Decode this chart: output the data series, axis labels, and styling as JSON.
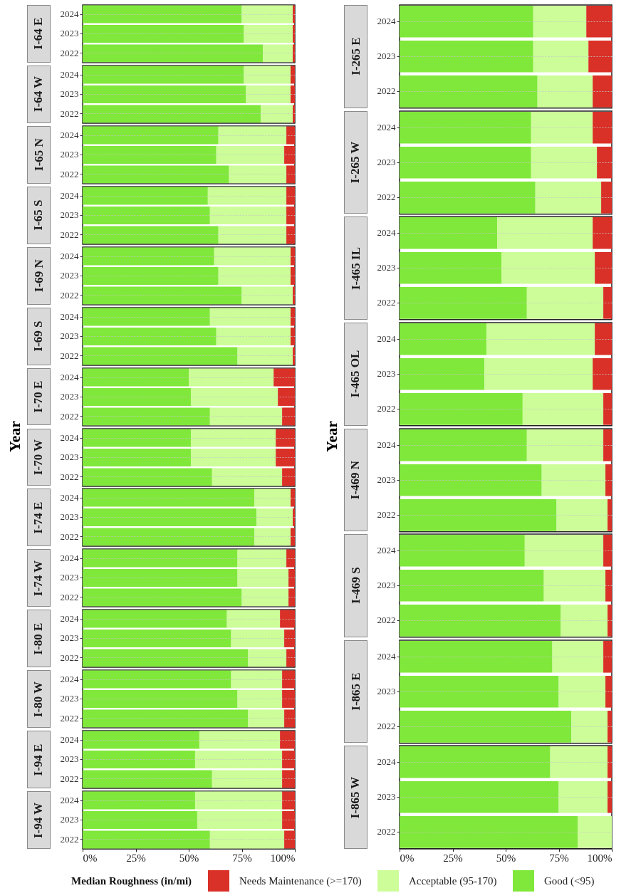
{
  "chart_data": [
    {
      "type": "bar",
      "title": "I-64 E",
      "categories": [
        "2024",
        "2023",
        "2022"
      ],
      "stacked": true,
      "orientation": "horizontal",
      "grid": "y",
      "tick_labels": "y",
      "xlim": [
        0,
        100
      ],
      "series": [
        {
          "color": "#80e83a",
          "values": [
            75,
            76,
            85
          ]
        },
        {
          "color": "#ccfd98",
          "values": [
            24,
            23,
            14
          ]
        },
        {
          "color": "#d93027",
          "values": [
            1,
            1,
            1
          ]
        }
      ]
    },
    {
      "type": "bar",
      "title": "I-64 W",
      "categories": [
        "2024",
        "2023",
        "2022"
      ],
      "stacked": true,
      "orientation": "horizontal",
      "grid": "y",
      "tick_labels": "y",
      "xlim": [
        0,
        100
      ],
      "series": [
        {
          "color": "#80e83a",
          "values": [
            76,
            77,
            84
          ]
        },
        {
          "color": "#ccfd98",
          "values": [
            22,
            21,
            15
          ]
        },
        {
          "color": "#d93027",
          "values": [
            2,
            2,
            1
          ]
        }
      ]
    },
    {
      "type": "bar",
      "title": "I-65 N",
      "categories": [
        "2024",
        "2023",
        "2022"
      ],
      "stacked": true,
      "orientation": "horizontal",
      "grid": "y",
      "tick_labels": "y",
      "xlim": [
        0,
        100
      ],
      "series": [
        {
          "color": "#80e83a",
          "values": [
            64,
            63,
            69
          ]
        },
        {
          "color": "#ccfd98",
          "values": [
            32,
            32,
            27
          ]
        },
        {
          "color": "#d93027",
          "values": [
            4,
            5,
            4
          ]
        }
      ]
    },
    {
      "type": "bar",
      "title": "I-65 S",
      "categories": [
        "2024",
        "2023",
        "2022"
      ],
      "stacked": true,
      "orientation": "horizontal",
      "grid": "y",
      "tick_labels": "y",
      "xlim": [
        0,
        100
      ],
      "series": [
        {
          "color": "#80e83a",
          "values": [
            59,
            60,
            64
          ]
        },
        {
          "color": "#ccfd98",
          "values": [
            37,
            36,
            32
          ]
        },
        {
          "color": "#d93027",
          "values": [
            4,
            4,
            4
          ]
        }
      ]
    },
    {
      "type": "bar",
      "title": "I-69 N",
      "categories": [
        "2024",
        "2023",
        "2022"
      ],
      "stacked": true,
      "orientation": "horizontal",
      "grid": "y",
      "tick_labels": "y",
      "xlim": [
        0,
        100
      ],
      "series": [
        {
          "color": "#80e83a",
          "values": [
            62,
            64,
            75
          ]
        },
        {
          "color": "#ccfd98",
          "values": [
            36,
            34,
            24
          ]
        },
        {
          "color": "#d93027",
          "values": [
            2,
            2,
            1
          ]
        }
      ]
    },
    {
      "type": "bar",
      "title": "I-69 S",
      "categories": [
        "2024",
        "2023",
        "2022"
      ],
      "stacked": true,
      "orientation": "horizontal",
      "grid": "y",
      "tick_labels": "y",
      "xlim": [
        0,
        100
      ],
      "series": [
        {
          "color": "#80e83a",
          "values": [
            60,
            63,
            73
          ]
        },
        {
          "color": "#ccfd98",
          "values": [
            38,
            35,
            26
          ]
        },
        {
          "color": "#d93027",
          "values": [
            2,
            2,
            1
          ]
        }
      ]
    },
    {
      "type": "bar",
      "title": "I-70 E",
      "categories": [
        "2024",
        "2023",
        "2022"
      ],
      "stacked": true,
      "orientation": "horizontal",
      "grid": "y",
      "tick_labels": "y",
      "xlim": [
        0,
        100
      ],
      "series": [
        {
          "color": "#80e83a",
          "values": [
            50,
            51,
            60
          ]
        },
        {
          "color": "#ccfd98",
          "values": [
            40,
            41,
            34
          ]
        },
        {
          "color": "#d93027",
          "values": [
            10,
            8,
            6
          ]
        }
      ]
    },
    {
      "type": "bar",
      "title": "I-70 W",
      "ylabel": "Year",
      "categories": [
        "2024",
        "2023",
        "2022"
      ],
      "stacked": true,
      "orientation": "horizontal",
      "grid": "y",
      "tick_labels": "y",
      "xlim": [
        0,
        100
      ],
      "series": [
        {
          "color": "#80e83a",
          "values": [
            51,
            51,
            61
          ]
        },
        {
          "color": "#ccfd98",
          "values": [
            40,
            40,
            33
          ]
        },
        {
          "color": "#d93027",
          "values": [
            9,
            9,
            6
          ]
        }
      ]
    },
    {
      "type": "bar",
      "title": "I-74 E",
      "categories": [
        "2024",
        "2023",
        "2022"
      ],
      "stacked": true,
      "orientation": "horizontal",
      "grid": "y",
      "tick_labels": "y",
      "xlim": [
        0,
        100
      ],
      "series": [
        {
          "color": "#80e83a",
          "values": [
            81,
            82,
            81
          ]
        },
        {
          "color": "#ccfd98",
          "values": [
            17,
            17,
            17
          ]
        },
        {
          "color": "#d93027",
          "values": [
            2,
            1,
            2
          ]
        }
      ]
    },
    {
      "type": "bar",
      "title": "I-74 W",
      "categories": [
        "2024",
        "2023",
        "2022"
      ],
      "stacked": true,
      "orientation": "horizontal",
      "grid": "y",
      "tick_labels": "y",
      "xlim": [
        0,
        100
      ],
      "series": [
        {
          "color": "#80e83a",
          "values": [
            73,
            73,
            75
          ]
        },
        {
          "color": "#ccfd98",
          "values": [
            23,
            24,
            22
          ]
        },
        {
          "color": "#d93027",
          "values": [
            4,
            3,
            3
          ]
        }
      ]
    },
    {
      "type": "bar",
      "title": "I-80 E",
      "categories": [
        "2024",
        "2023",
        "2022"
      ],
      "stacked": true,
      "orientation": "horizontal",
      "grid": "y",
      "tick_labels": "y",
      "xlim": [
        0,
        100
      ],
      "series": [
        {
          "color": "#80e83a",
          "values": [
            68,
            70,
            78
          ]
        },
        {
          "color": "#ccfd98",
          "values": [
            25,
            25,
            18
          ]
        },
        {
          "color": "#d93027",
          "values": [
            7,
            5,
            4
          ]
        }
      ]
    },
    {
      "type": "bar",
      "title": "I-80 W",
      "categories": [
        "2024",
        "2023",
        "2022"
      ],
      "stacked": true,
      "orientation": "horizontal",
      "grid": "y",
      "tick_labels": "y",
      "xlim": [
        0,
        100
      ],
      "series": [
        {
          "color": "#80e83a",
          "values": [
            70,
            73,
            78
          ]
        },
        {
          "color": "#ccfd98",
          "values": [
            24,
            21,
            17
          ]
        },
        {
          "color": "#d93027",
          "values": [
            6,
            6,
            5
          ]
        }
      ]
    },
    {
      "type": "bar",
      "title": "I-94 E",
      "categories": [
        "2024",
        "2023",
        "2022"
      ],
      "stacked": true,
      "orientation": "horizontal",
      "grid": "y",
      "tick_labels": "y",
      "xlim": [
        0,
        100
      ],
      "series": [
        {
          "color": "#80e83a",
          "values": [
            55,
            53,
            61
          ]
        },
        {
          "color": "#ccfd98",
          "values": [
            38,
            41,
            33
          ]
        },
        {
          "color": "#d93027",
          "values": [
            7,
            6,
            6
          ]
        }
      ]
    },
    {
      "type": "bar",
      "title": "I-94 W",
      "categories": [
        "2024",
        "2023",
        "2022"
      ],
      "stacked": true,
      "orientation": "horizontal",
      "grid": "y",
      "legend": "bottom",
      "legend_title": "Median Roughness (in/mi)",
      "xlim": [
        0,
        100
      ],
      "xticks": [
        {
          "value": 0,
          "label": "0%"
        },
        {
          "value": 25,
          "label": "25%"
        },
        {
          "value": 50,
          "label": "50%"
        },
        {
          "value": 75,
          "label": "75%"
        },
        {
          "value": 100,
          "label": "100%"
        }
      ],
      "series": [
        {
          "name": "Good (<95)",
          "color": "#80e83a",
          "values": [
            53,
            54,
            60
          ]
        },
        {
          "name": "Acceptable (95-170)",
          "color": "#ccfd98",
          "values": [
            41,
            40,
            35
          ]
        },
        {
          "name": "Needs Maintenance (>=170)",
          "color": "#d93027",
          "values": [
            6,
            6,
            5
          ]
        }
      ]
    },
    {
      "type": "bar",
      "title": "I-265 E",
      "categories": [
        "2024",
        "2023",
        "2022"
      ],
      "stacked": true,
      "orientation": "horizontal",
      "grid": "y",
      "tick_labels": "y",
      "xlim": [
        0,
        100
      ],
      "series": [
        {
          "color": "#80e83a",
          "values": [
            63,
            63,
            65
          ]
        },
        {
          "color": "#ccfd98",
          "values": [
            25,
            26,
            26
          ]
        },
        {
          "color": "#d93027",
          "values": [
            12,
            11,
            9
          ]
        }
      ]
    },
    {
      "type": "bar",
      "title": "I-265 W",
      "categories": [
        "2024",
        "2023",
        "2022"
      ],
      "stacked": true,
      "orientation": "horizontal",
      "grid": "y",
      "tick_labels": "y",
      "xlim": [
        0,
        100
      ],
      "series": [
        {
          "color": "#80e83a",
          "values": [
            62,
            62,
            64
          ]
        },
        {
          "color": "#ccfd98",
          "values": [
            29,
            31,
            31
          ]
        },
        {
          "color": "#d93027",
          "values": [
            9,
            7,
            5
          ]
        }
      ]
    },
    {
      "type": "bar",
      "title": "I-465 IL",
      "categories": [
        "2024",
        "2023",
        "2022"
      ],
      "stacked": true,
      "orientation": "horizontal",
      "grid": "y",
      "tick_labels": "y",
      "xlim": [
        0,
        100
      ],
      "series": [
        {
          "color": "#80e83a",
          "values": [
            46,
            48,
            60
          ]
        },
        {
          "color": "#ccfd98",
          "values": [
            45,
            44,
            36
          ]
        },
        {
          "color": "#d93027",
          "values": [
            9,
            8,
            4
          ]
        }
      ]
    },
    {
      "type": "bar",
      "title": "I-465 OL",
      "categories": [
        "2024",
        "2023",
        "2022"
      ],
      "stacked": true,
      "orientation": "horizontal",
      "grid": "y",
      "tick_labels": "y",
      "xlim": [
        0,
        100
      ],
      "series": [
        {
          "color": "#80e83a",
          "values": [
            41,
            40,
            58
          ]
        },
        {
          "color": "#ccfd98",
          "values": [
            51,
            51,
            38
          ]
        },
        {
          "color": "#d93027",
          "values": [
            8,
            9,
            4
          ]
        }
      ]
    },
    {
      "type": "bar",
      "title": "I-469 N",
      "ylabel": "Year",
      "categories": [
        "2024",
        "2023",
        "2022"
      ],
      "stacked": true,
      "orientation": "horizontal",
      "grid": "y",
      "tick_labels": "y",
      "xlim": [
        0,
        100
      ],
      "series": [
        {
          "color": "#80e83a",
          "values": [
            60,
            67,
            74
          ]
        },
        {
          "color": "#ccfd98",
          "values": [
            36,
            30,
            24
          ]
        },
        {
          "color": "#d93027",
          "values": [
            4,
            3,
            2
          ]
        }
      ]
    },
    {
      "type": "bar",
      "title": "I-469 S",
      "categories": [
        "2024",
        "2023",
        "2022"
      ],
      "stacked": true,
      "orientation": "horizontal",
      "grid": "y",
      "tick_labels": "y",
      "xlim": [
        0,
        100
      ],
      "series": [
        {
          "color": "#80e83a",
          "values": [
            59,
            68,
            76
          ]
        },
        {
          "color": "#ccfd98",
          "values": [
            37,
            29,
            22
          ]
        },
        {
          "color": "#d93027",
          "values": [
            4,
            3,
            2
          ]
        }
      ]
    },
    {
      "type": "bar",
      "title": "I-865 E",
      "categories": [
        "2024",
        "2023",
        "2022"
      ],
      "stacked": true,
      "orientation": "horizontal",
      "grid": "y",
      "tick_labels": "y",
      "xlim": [
        0,
        100
      ],
      "series": [
        {
          "color": "#80e83a",
          "values": [
            72,
            75,
            81
          ]
        },
        {
          "color": "#ccfd98",
          "values": [
            24,
            22,
            17
          ]
        },
        {
          "color": "#d93027",
          "values": [
            4,
            3,
            2
          ]
        }
      ]
    },
    {
      "type": "bar",
      "title": "I-865 W",
      "categories": [
        "2024",
        "2023",
        "2022"
      ],
      "stacked": true,
      "orientation": "horizontal",
      "grid": "y",
      "xlim": [
        0,
        100
      ],
      "xticks": [
        {
          "value": 0,
          "label": "0%"
        },
        {
          "value": 25,
          "label": "25%"
        },
        {
          "value": 50,
          "label": "50%"
        },
        {
          "value": 75,
          "label": "75%"
        },
        {
          "value": 100,
          "label": "100%"
        }
      ],
      "series": [
        {
          "color": "#80e83a",
          "values": [
            71,
            75,
            84
          ]
        },
        {
          "color": "#ccfd98",
          "values": [
            27,
            23,
            16
          ]
        },
        {
          "color": "#d93027",
          "values": [
            2,
            2,
            0
          ]
        }
      ]
    }
  ]
}
